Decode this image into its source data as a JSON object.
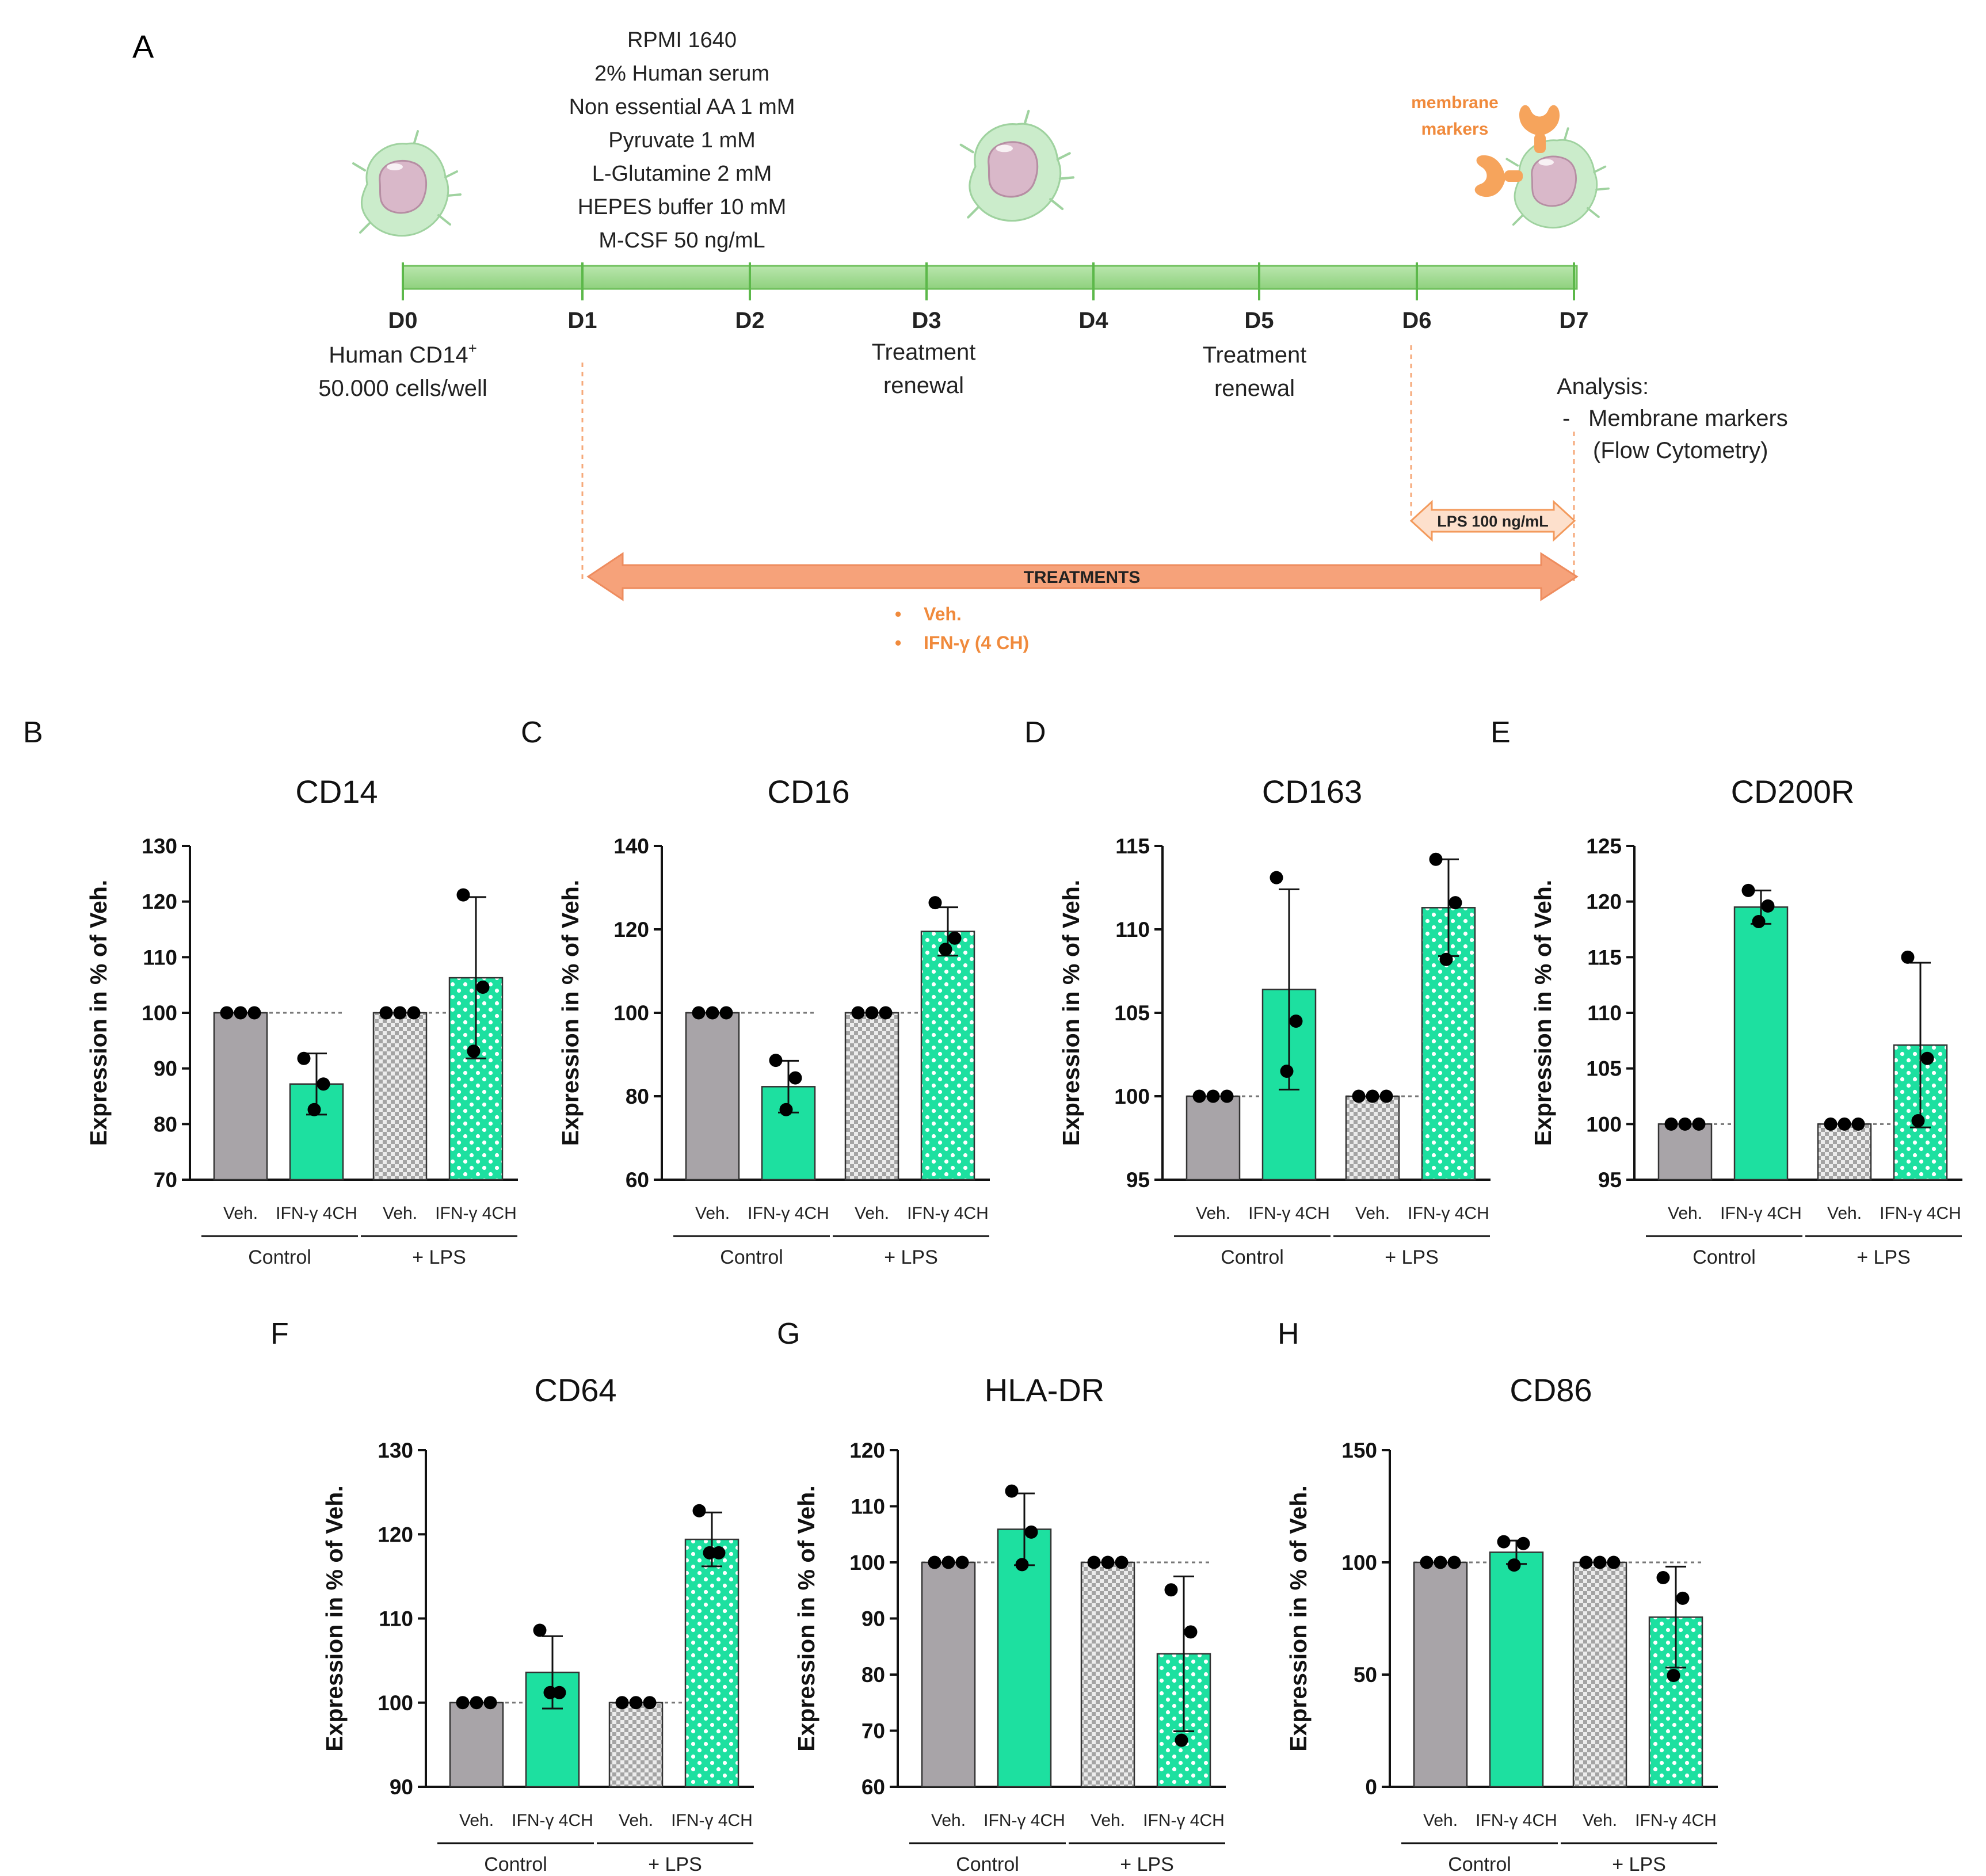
{
  "colors": {
    "veh": "#a8a4a8",
    "ifn": "#1de0a0",
    "timeline": "#9fd98f",
    "timeline_edge": "#5cb84a",
    "orange": "#f39a5c",
    "orange_light": "#fbd6bf",
    "orange_text": "#f08a3c",
    "cell_body": "#c9ebc9",
    "cell_nucleus": "#d8b7c7"
  },
  "schematic": {
    "panel_label": "A",
    "medium": [
      "RPMI 1640",
      "2% Human serum",
      "Non essential AA 1 mM",
      "Pyruvate 1 mM",
      "L-Glutamine 2 mM",
      "HEPES buffer 10 mM",
      "M-CSF 50 ng/mL"
    ],
    "days": [
      "D0",
      "D1",
      "D2",
      "D3",
      "D4",
      "D5",
      "D6",
      "D7"
    ],
    "d0_line1": "Human CD14",
    "d0_sup": "+",
    "d0_line2": "50.000 cells/well",
    "d3_line1": "Treatment",
    "d3_line2": "renewal",
    "d5_line1": "Treatment",
    "d5_line2": "renewal",
    "analysis_title": "Analysis:",
    "analysis_dash": "-",
    "analysis_item": "Membrane markers",
    "analysis_method": "(Flow Cytometry)",
    "membrane_markers_1": "membrane",
    "membrane_markers_2": "markers",
    "lps_arrow": "LPS 100 ng/mL",
    "treatments_arrow": "TREATMENTS",
    "bullets": [
      "Veh.",
      "IFN-γ (4 CH)"
    ]
  },
  "common": {
    "ylabel": "Expression in % of Veh.",
    "bar_labels": [
      "Veh.",
      "IFN-γ 4CH",
      "Veh.",
      "IFN-γ 4CH"
    ],
    "group_labels": [
      "Control",
      "+ LPS"
    ],
    "reference_value": 100
  },
  "chart_data": [
    {
      "panel": "B",
      "type": "bar",
      "title": "CD14",
      "ylim": [
        70,
        130
      ],
      "ticks": [
        70,
        80,
        90,
        100,
        110,
        120,
        130
      ],
      "categories": [
        "Veh. Control",
        "IFN-γ 4CH Control",
        "Veh. + LPS",
        "IFN-γ 4CH + LPS"
      ],
      "values": [
        100,
        87.2,
        100,
        106.3
      ],
      "sd": [
        0,
        5.5,
        0,
        14.5
      ],
      "points": [
        [
          100,
          100,
          100
        ],
        [
          91.8,
          87.2,
          82.6
        ],
        [
          100,
          100,
          100
        ],
        [
          121.2,
          104.6,
          93.1
        ]
      ]
    },
    {
      "panel": "C",
      "type": "bar",
      "title": "CD16",
      "ylim": [
        60,
        140
      ],
      "ticks": [
        60,
        80,
        100,
        120,
        140
      ],
      "categories": [
        "Veh. Control",
        "IFN-γ 4CH Control",
        "Veh. + LPS",
        "IFN-γ 4CH + LPS"
      ],
      "values": [
        100,
        82.3,
        100,
        119.5
      ],
      "sd": [
        0,
        6.2,
        0,
        5.8
      ],
      "points": [
        [
          100,
          100,
          100
        ],
        [
          88.6,
          84.4,
          76.8
        ],
        [
          100,
          100,
          100
        ],
        [
          126.4,
          117.9,
          115.2
        ]
      ]
    },
    {
      "panel": "D",
      "type": "bar",
      "title": "CD163",
      "ylim": [
        95,
        115
      ],
      "ticks": [
        95,
        100,
        105,
        110,
        115
      ],
      "categories": [
        "Veh. Control",
        "IFN-γ 4CH Control",
        "Veh. + LPS",
        "IFN-γ 4CH + LPS"
      ],
      "values": [
        100,
        106.4,
        100,
        111.3
      ],
      "sd": [
        0,
        6.0,
        0,
        2.9
      ],
      "points": [
        [
          100,
          100,
          100
        ],
        [
          113.1,
          104.5,
          101.5
        ],
        [
          100,
          100,
          100
        ],
        [
          114.2,
          111.6,
          108.2
        ]
      ]
    },
    {
      "panel": "E",
      "type": "bar",
      "title": "CD200R",
      "ylim": [
        95,
        125
      ],
      "ticks": [
        95,
        100,
        105,
        110,
        115,
        120,
        125
      ],
      "categories": [
        "Veh. Control",
        "IFN-γ 4CH Control",
        "Veh. + LPS",
        "IFN-γ 4CH + LPS"
      ],
      "values": [
        100,
        119.5,
        100,
        107.1
      ],
      "sd": [
        0,
        1.5,
        0,
        7.4
      ],
      "points": [
        [
          100,
          100,
          100
        ],
        [
          121.0,
          119.6,
          118.2
        ],
        [
          100,
          100,
          100
        ],
        [
          115.0,
          105.9,
          100.3
        ]
      ]
    },
    {
      "panel": "F",
      "type": "bar",
      "title": "CD64",
      "ylim": [
        90,
        130
      ],
      "ticks": [
        90,
        100,
        110,
        120,
        130
      ],
      "categories": [
        "Veh. Control",
        "IFN-γ 4CH Control",
        "Veh. + LPS",
        "IFN-γ 4CH + LPS"
      ],
      "values": [
        100,
        103.6,
        100,
        119.4
      ],
      "sd": [
        0,
        4.3,
        0,
        3.2
      ],
      "points": [
        [
          100,
          100,
          100
        ],
        [
          108.6,
          101.2,
          101.2
        ],
        [
          100,
          100,
          100
        ],
        [
          122.8,
          117.8,
          117.8
        ]
      ]
    },
    {
      "panel": "G",
      "type": "bar",
      "title": "HLA-DR",
      "ylim": [
        60,
        120
      ],
      "ticks": [
        60,
        70,
        80,
        90,
        100,
        110,
        120
      ],
      "categories": [
        "Veh. Control",
        "IFN-γ 4CH Control",
        "Veh. + LPS",
        "IFN-γ 4CH + LPS"
      ],
      "values": [
        100,
        105.9,
        100,
        83.7
      ],
      "sd": [
        0,
        6.4,
        0,
        13.8
      ],
      "points": [
        [
          100,
          100,
          100
        ],
        [
          112.7,
          105.4,
          99.6
        ],
        [
          100,
          100,
          100
        ],
        [
          95.1,
          87.6,
          68.3
        ]
      ]
    },
    {
      "panel": "H",
      "type": "bar",
      "title": "CD86",
      "ylim": [
        0,
        150
      ],
      "ticks": [
        0,
        50,
        100,
        150
      ],
      "categories": [
        "Veh. Control",
        "IFN-γ 4CH Control",
        "Veh. + LPS",
        "IFN-γ 4CH + LPS"
      ],
      "values": [
        100,
        104.5,
        100,
        75.6
      ],
      "sd": [
        0,
        5.2,
        0,
        22.5
      ],
      "points": [
        [
          100,
          100,
          100
        ],
        [
          109.2,
          108.4,
          98.8
        ],
        [
          100,
          100,
          100
        ],
        [
          93.2,
          84.0,
          49.6
        ]
      ]
    }
  ]
}
